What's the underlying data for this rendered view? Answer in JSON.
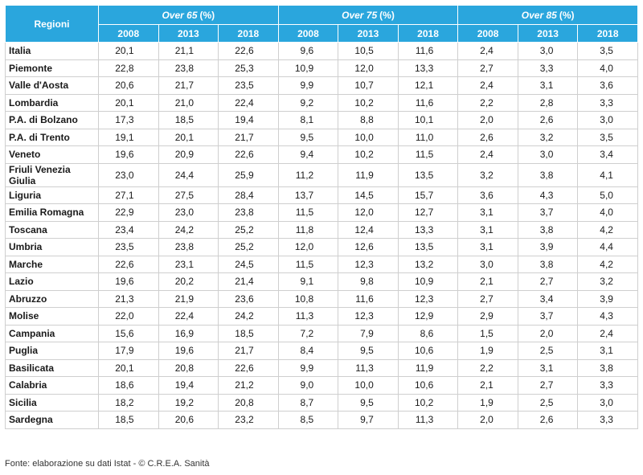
{
  "table": {
    "corner_header": "Regioni",
    "groups": [
      {
        "label": "Over 65",
        "unit": "(%)"
      },
      {
        "label": "Over 75",
        "unit": "(%)"
      },
      {
        "label": "Over 85",
        "unit": "(%)"
      }
    ],
    "years": [
      "2008",
      "2013",
      "2018",
      "2008",
      "2013",
      "2018",
      "2008",
      "2013",
      "2018"
    ],
    "rows": [
      {
        "region": "Italia",
        "values": [
          "20,1",
          "21,1",
          "22,6",
          "9,6",
          "10,5",
          "11,6",
          "2,4",
          "3,0",
          "3,5"
        ]
      },
      {
        "region": "Piemonte",
        "values": [
          "22,8",
          "23,8",
          "25,3",
          "10,9",
          "12,0",
          "13,3",
          "2,7",
          "3,3",
          "4,0"
        ]
      },
      {
        "region": "Valle d'Aosta",
        "values": [
          "20,6",
          "21,7",
          "23,5",
          "9,9",
          "10,7",
          "12,1",
          "2,4",
          "3,1",
          "3,6"
        ]
      },
      {
        "region": "Lombardia",
        "values": [
          "20,1",
          "21,0",
          "22,4",
          "9,2",
          "10,2",
          "11,6",
          "2,2",
          "2,8",
          "3,3"
        ]
      },
      {
        "region": "P.A. di Bolzano",
        "values": [
          "17,3",
          "18,5",
          "19,4",
          "8,1",
          "8,8",
          "10,1",
          "2,0",
          "2,6",
          "3,0"
        ]
      },
      {
        "region": "P.A. di Trento",
        "values": [
          "19,1",
          "20,1",
          "21,7",
          "9,5",
          "10,0",
          "11,0",
          "2,6",
          "3,2",
          "3,5"
        ]
      },
      {
        "region": "Veneto",
        "values": [
          "19,6",
          "20,9",
          "22,6",
          "9,4",
          "10,2",
          "11,5",
          "2,4",
          "3,0",
          "3,4"
        ]
      },
      {
        "region": "Friuli Venezia Giulia",
        "values": [
          "23,0",
          "24,4",
          "25,9",
          "11,2",
          "11,9",
          "13,5",
          "3,2",
          "3,8",
          "4,1"
        ]
      },
      {
        "region": "Liguria",
        "values": [
          "27,1",
          "27,5",
          "28,4",
          "13,7",
          "14,5",
          "15,7",
          "3,6",
          "4,3",
          "5,0"
        ]
      },
      {
        "region": "Emilia Romagna",
        "values": [
          "22,9",
          "23,0",
          "23,8",
          "11,5",
          "12,0",
          "12,7",
          "3,1",
          "3,7",
          "4,0"
        ]
      },
      {
        "region": "Toscana",
        "values": [
          "23,4",
          "24,2",
          "25,2",
          "11,8",
          "12,4",
          "13,3",
          "3,1",
          "3,8",
          "4,2"
        ]
      },
      {
        "region": "Umbria",
        "values": [
          "23,5",
          "23,8",
          "25,2",
          "12,0",
          "12,6",
          "13,5",
          "3,1",
          "3,9",
          "4,4"
        ]
      },
      {
        "region": "Marche",
        "values": [
          "22,6",
          "23,1",
          "24,5",
          "11,5",
          "12,3",
          "13,2",
          "3,0",
          "3,8",
          "4,2"
        ]
      },
      {
        "region": "Lazio",
        "values": [
          "19,6",
          "20,2",
          "21,4",
          "9,1",
          "9,8",
          "10,9",
          "2,1",
          "2,7",
          "3,2"
        ]
      },
      {
        "region": "Abruzzo",
        "values": [
          "21,3",
          "21,9",
          "23,6",
          "10,8",
          "11,6",
          "12,3",
          "2,7",
          "3,4",
          "3,9"
        ]
      },
      {
        "region": "Molise",
        "values": [
          "22,0",
          "22,4",
          "24,2",
          "11,3",
          "12,3",
          "12,9",
          "2,9",
          "3,7",
          "4,3"
        ]
      },
      {
        "region": "Campania",
        "values": [
          "15,6",
          "16,9",
          "18,5",
          "7,2",
          "7,9",
          "8,6",
          "1,5",
          "2,0",
          "2,4"
        ]
      },
      {
        "region": "Puglia",
        "values": [
          "17,9",
          "19,6",
          "21,7",
          "8,4",
          "9,5",
          "10,6",
          "1,9",
          "2,5",
          "3,1"
        ]
      },
      {
        "region": "Basilicata",
        "values": [
          "20,1",
          "20,8",
          "22,6",
          "9,9",
          "11,3",
          "11,9",
          "2,2",
          "3,1",
          "3,8"
        ]
      },
      {
        "region": "Calabria",
        "values": [
          "18,6",
          "19,4",
          "21,2",
          "9,0",
          "10,0",
          "10,6",
          "2,1",
          "2,7",
          "3,3"
        ]
      },
      {
        "region": "Sicilia",
        "values": [
          "18,2",
          "19,2",
          "20,8",
          "8,7",
          "9,5",
          "10,2",
          "1,9",
          "2,5",
          "3,0"
        ]
      },
      {
        "region": "Sardegna",
        "values": [
          "18,5",
          "20,6",
          "23,2",
          "8,5",
          "9,7",
          "11,3",
          "2,0",
          "2,6",
          "3,3"
        ]
      }
    ]
  },
  "source": "Fonte: elaborazione su dati Istat - © C.R.E.A. Sanità",
  "colors": {
    "header_bg": "#2aa6dd",
    "header_text": "#ffffff",
    "grid": "#cfcfcf"
  }
}
